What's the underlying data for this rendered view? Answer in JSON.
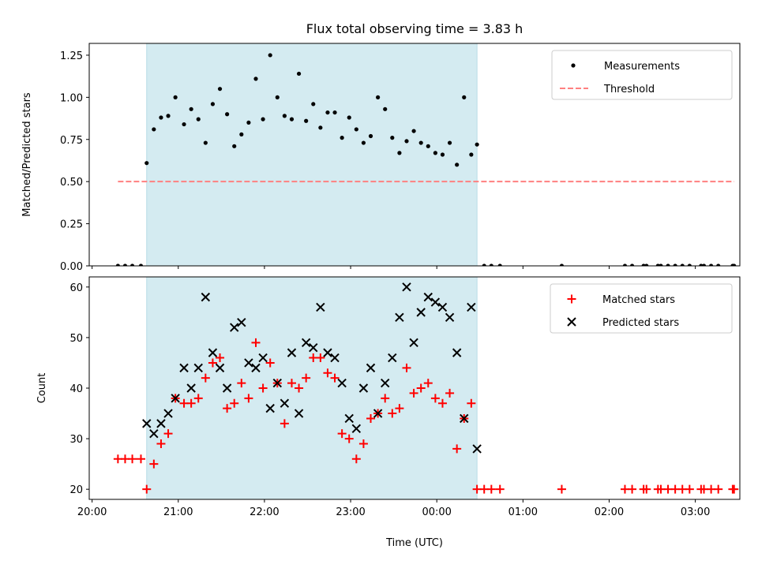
{
  "chart_data": [
    {
      "type": "scatter",
      "title": "Flux total observing time = 3.83 h",
      "ylabel": "Matched/Predicted stars",
      "xlabel": "",
      "ylim": [
        0,
        1.32
      ],
      "yticks": [
        "0.00",
        "0.25",
        "0.50",
        "0.75",
        "1.00",
        "1.25"
      ],
      "shaded_span": [
        "20:38",
        "00:28"
      ],
      "shade_color": "#d4ebf1",
      "legend_position": "upper right",
      "series": [
        {
          "name": "Measurements",
          "marker": "dot",
          "color": "#000000",
          "points": [
            [
              "20:18",
              0
            ],
            [
              "20:23",
              0
            ],
            [
              "20:28",
              0
            ],
            [
              "20:34",
              0
            ],
            [
              "20:38",
              0.61
            ],
            [
              "20:43",
              0.81
            ],
            [
              "20:48",
              0.88
            ],
            [
              "20:53",
              0.89
            ],
            [
              "20:58",
              1.0
            ],
            [
              "21:04",
              0.84
            ],
            [
              "21:09",
              0.93
            ],
            [
              "21:14",
              0.87
            ],
            [
              "21:19",
              0.73
            ],
            [
              "21:24",
              0.96
            ],
            [
              "21:29",
              1.05
            ],
            [
              "21:34",
              0.9
            ],
            [
              "21:39",
              0.71
            ],
            [
              "21:44",
              0.78
            ],
            [
              "21:49",
              0.85
            ],
            [
              "21:54",
              1.11
            ],
            [
              "21:59",
              0.87
            ],
            [
              "22:04",
              1.25
            ],
            [
              "22:09",
              1.0
            ],
            [
              "22:14",
              0.89
            ],
            [
              "22:19",
              0.87
            ],
            [
              "22:24",
              1.14
            ],
            [
              "22:29",
              0.86
            ],
            [
              "22:34",
              0.96
            ],
            [
              "22:39",
              0.82
            ],
            [
              "22:44",
              0.91
            ],
            [
              "22:49",
              0.91
            ],
            [
              "22:54",
              0.76
            ],
            [
              "22:59",
              0.88
            ],
            [
              "23:04",
              0.81
            ],
            [
              "23:09",
              0.73
            ],
            [
              "23:14",
              0.77
            ],
            [
              "23:19",
              1.0
            ],
            [
              "23:24",
              0.93
            ],
            [
              "23:29",
              0.76
            ],
            [
              "23:34",
              0.67
            ],
            [
              "23:39",
              0.74
            ],
            [
              "23:44",
              0.8
            ],
            [
              "23:49",
              0.73
            ],
            [
              "23:54",
              0.71
            ],
            [
              "23:59",
              0.67
            ],
            [
              "00:04",
              0.66
            ],
            [
              "00:09",
              0.73
            ],
            [
              "00:14",
              0.6
            ],
            [
              "00:19",
              1.0
            ],
            [
              "00:24",
              0.66
            ],
            [
              "00:28",
              0.72
            ],
            [
              "00:33",
              0
            ],
            [
              "00:38",
              0
            ],
            [
              "00:44",
              0
            ],
            [
              "01:27",
              0
            ],
            [
              "02:11",
              0
            ],
            [
              "02:16",
              0
            ],
            [
              "02:24",
              0
            ],
            [
              "02:26",
              0
            ],
            [
              "02:34",
              0
            ],
            [
              "02:36",
              0
            ],
            [
              "02:41",
              0
            ],
            [
              "02:46",
              0
            ],
            [
              "02:51",
              0
            ],
            [
              "02:56",
              0
            ],
            [
              "03:04",
              0
            ],
            [
              "03:06",
              0
            ],
            [
              "03:11",
              0
            ],
            [
              "03:16",
              0
            ],
            [
              "03:26",
              0
            ],
            [
              "03:27",
              0
            ]
          ]
        },
        {
          "name": "Threshold",
          "marker": "dashed-line",
          "color": "#ff8080",
          "points": [
            [
              "20:18",
              0.5
            ],
            [
              "03:27",
              0.5
            ]
          ]
        }
      ]
    },
    {
      "type": "scatter",
      "title": "",
      "ylabel": "Count",
      "xlabel": "Time (UTC)",
      "ylim": [
        18,
        62
      ],
      "yticks": [
        "20",
        "30",
        "40",
        "50",
        "60"
      ],
      "xlim": [
        "19:58",
        "03:31"
      ],
      "xticks": [
        "20:00",
        "21:00",
        "22:00",
        "23:00",
        "00:00",
        "01:00",
        "02:00",
        "03:00"
      ],
      "shaded_span": [
        "20:38",
        "00:28"
      ],
      "shade_color": "#d4ebf1",
      "legend_position": "upper right",
      "series": [
        {
          "name": "Matched stars",
          "marker": "plus",
          "color": "#ff0000",
          "points": [
            [
              "20:18",
              26
            ],
            [
              "20:23",
              26
            ],
            [
              "20:28",
              26
            ],
            [
              "20:34",
              26
            ],
            [
              "20:38",
              20
            ],
            [
              "20:43",
              25
            ],
            [
              "20:48",
              29
            ],
            [
              "20:53",
              31
            ],
            [
              "20:58",
              38
            ],
            [
              "21:04",
              37
            ],
            [
              "21:09",
              37
            ],
            [
              "21:14",
              38
            ],
            [
              "21:19",
              42
            ],
            [
              "21:24",
              45
            ],
            [
              "21:29",
              46
            ],
            [
              "21:34",
              36
            ],
            [
              "21:39",
              37
            ],
            [
              "21:44",
              41
            ],
            [
              "21:49",
              38
            ],
            [
              "21:54",
              49
            ],
            [
              "21:59",
              40
            ],
            [
              "22:04",
              45
            ],
            [
              "22:09",
              41
            ],
            [
              "22:14",
              33
            ],
            [
              "22:19",
              41
            ],
            [
              "22:24",
              40
            ],
            [
              "22:29",
              42
            ],
            [
              "22:34",
              46
            ],
            [
              "22:39",
              46
            ],
            [
              "22:44",
              43
            ],
            [
              "22:49",
              42
            ],
            [
              "22:54",
              31
            ],
            [
              "22:59",
              30
            ],
            [
              "23:04",
              26
            ],
            [
              "23:09",
              29
            ],
            [
              "23:14",
              34
            ],
            [
              "23:19",
              35
            ],
            [
              "23:24",
              38
            ],
            [
              "23:29",
              35
            ],
            [
              "23:34",
              36
            ],
            [
              "23:39",
              44
            ],
            [
              "23:44",
              39
            ],
            [
              "23:49",
              40
            ],
            [
              "23:54",
              41
            ],
            [
              "23:59",
              38
            ],
            [
              "00:04",
              37
            ],
            [
              "00:09",
              39
            ],
            [
              "00:14",
              28
            ],
            [
              "00:19",
              34
            ],
            [
              "00:24",
              37
            ],
            [
              "00:28",
              20
            ],
            [
              "00:33",
              20
            ],
            [
              "00:38",
              20
            ],
            [
              "00:44",
              20
            ],
            [
              "01:27",
              20
            ],
            [
              "02:11",
              20
            ],
            [
              "02:16",
              20
            ],
            [
              "02:24",
              20
            ],
            [
              "02:26",
              20
            ],
            [
              "02:34",
              20
            ],
            [
              "02:36",
              20
            ],
            [
              "02:41",
              20
            ],
            [
              "02:46",
              20
            ],
            [
              "02:51",
              20
            ],
            [
              "02:56",
              20
            ],
            [
              "03:04",
              20
            ],
            [
              "03:06",
              20
            ],
            [
              "03:11",
              20
            ],
            [
              "03:16",
              20
            ],
            [
              "03:26",
              20
            ],
            [
              "03:27",
              20
            ]
          ]
        },
        {
          "name": "Predicted stars",
          "marker": "x",
          "color": "#000000",
          "points": [
            [
              "20:38",
              33
            ],
            [
              "20:43",
              31
            ],
            [
              "20:48",
              33
            ],
            [
              "20:53",
              35
            ],
            [
              "20:58",
              38
            ],
            [
              "21:04",
              44
            ],
            [
              "21:09",
              40
            ],
            [
              "21:14",
              44
            ],
            [
              "21:19",
              58
            ],
            [
              "21:24",
              47
            ],
            [
              "21:29",
              44
            ],
            [
              "21:34",
              40
            ],
            [
              "21:39",
              52
            ],
            [
              "21:44",
              53
            ],
            [
              "21:49",
              45
            ],
            [
              "21:54",
              44
            ],
            [
              "21:59",
              46
            ],
            [
              "22:04",
              36
            ],
            [
              "22:09",
              41
            ],
            [
              "22:14",
              37
            ],
            [
              "22:19",
              47
            ],
            [
              "22:24",
              35
            ],
            [
              "22:29",
              49
            ],
            [
              "22:34",
              48
            ],
            [
              "22:39",
              56
            ],
            [
              "22:44",
              47
            ],
            [
              "22:49",
              46
            ],
            [
              "22:54",
              41
            ],
            [
              "22:59",
              34
            ],
            [
              "23:04",
              32
            ],
            [
              "23:09",
              40
            ],
            [
              "23:14",
              44
            ],
            [
              "23:19",
              35
            ],
            [
              "23:24",
              41
            ],
            [
              "23:29",
              46
            ],
            [
              "23:34",
              54
            ],
            [
              "23:39",
              60
            ],
            [
              "23:44",
              49
            ],
            [
              "23:49",
              55
            ],
            [
              "23:54",
              58
            ],
            [
              "23:59",
              57
            ],
            [
              "00:04",
              56
            ],
            [
              "00:09",
              54
            ],
            [
              "00:14",
              47
            ],
            [
              "00:19",
              34
            ],
            [
              "00:24",
              56
            ],
            [
              "00:28",
              28
            ]
          ]
        }
      ]
    }
  ]
}
